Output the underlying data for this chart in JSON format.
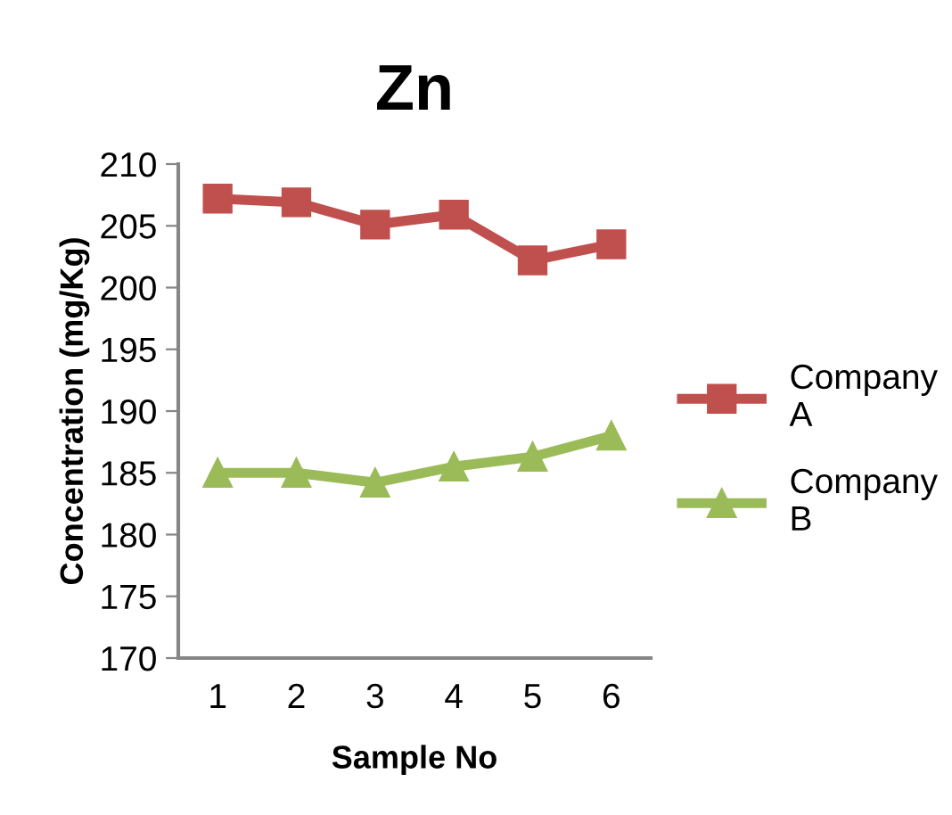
{
  "chart_data": {
    "type": "line",
    "title": "Zn",
    "xlabel": "Sample No",
    "ylabel": "Concentration (mg/Kg)",
    "categories": [
      "1",
      "2",
      "3",
      "4",
      "5",
      "6"
    ],
    "series": [
      {
        "name": "Company A",
        "color": "#c0504d",
        "marker": "square",
        "values": [
          207.2,
          206.9,
          205.1,
          205.9,
          202.2,
          203.5
        ]
      },
      {
        "name": "Company B",
        "color": "#9bbb59",
        "marker": "triangle",
        "values": [
          185.0,
          185.0,
          184.2,
          185.5,
          186.3,
          188.0
        ]
      }
    ],
    "ylim": [
      170,
      210
    ],
    "yticks": [
      170,
      175,
      180,
      185,
      190,
      195,
      200,
      205,
      210
    ],
    "legend": "right",
    "line_style": "solid"
  }
}
